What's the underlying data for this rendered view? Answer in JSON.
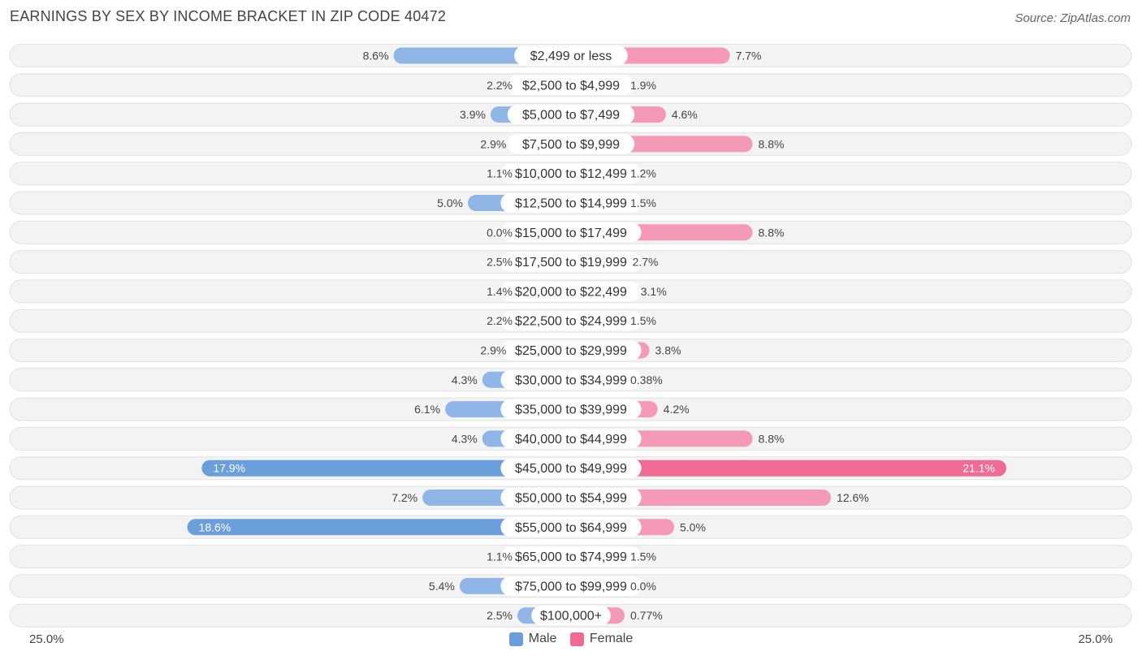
{
  "header": {
    "title": "EARNINGS BY SEX BY INCOME BRACKET IN ZIP CODE 40472",
    "source": "Source: ZipAtlas.com"
  },
  "axis": {
    "left_label": "25.0%",
    "right_label": "25.0%"
  },
  "legend": {
    "male_label": "Male",
    "female_label": "Female"
  },
  "colors": {
    "male": "#8fb6e6",
    "male_strong": "#6a9fdc",
    "female": "#f49ab6",
    "female_strong": "#f06b93",
    "row_bg": "#f2f2f2"
  },
  "chart_data": {
    "type": "bar",
    "orientation": "horizontal-diverging",
    "title": "EARNINGS BY SEX BY INCOME BRACKET IN ZIP CODE 40472",
    "xlim": [
      -25,
      25
    ],
    "categories": [
      "$2,499 or less",
      "$2,500 to $4,999",
      "$5,000 to $7,499",
      "$7,500 to $9,999",
      "$10,000 to $12,499",
      "$12,500 to $14,999",
      "$15,000 to $17,499",
      "$17,500 to $19,999",
      "$20,000 to $22,499",
      "$22,500 to $24,999",
      "$25,000 to $29,999",
      "$30,000 to $34,999",
      "$35,000 to $39,999",
      "$40,000 to $44,999",
      "$45,000 to $49,999",
      "$50,000 to $54,999",
      "$55,000 to $64,999",
      "$65,000 to $74,999",
      "$75,000 to $99,999",
      "$100,000+"
    ],
    "series": [
      {
        "name": "Male",
        "values": [
          8.6,
          2.2,
          3.9,
          2.9,
          1.1,
          5.0,
          0.0,
          2.5,
          1.4,
          2.2,
          2.9,
          4.3,
          6.1,
          4.3,
          17.9,
          7.2,
          18.6,
          1.1,
          5.4,
          2.5
        ],
        "labels": [
          "8.6%",
          "2.2%",
          "3.9%",
          "2.9%",
          "1.1%",
          "5.0%",
          "0.0%",
          "2.5%",
          "1.4%",
          "2.2%",
          "2.9%",
          "4.3%",
          "6.1%",
          "4.3%",
          "17.9%",
          "7.2%",
          "18.6%",
          "1.1%",
          "5.4%",
          "2.5%"
        ]
      },
      {
        "name": "Female",
        "values": [
          7.7,
          1.9,
          4.6,
          8.8,
          1.2,
          1.5,
          8.8,
          2.7,
          3.1,
          1.5,
          3.8,
          0.38,
          4.2,
          8.8,
          21.1,
          12.6,
          5.0,
          1.5,
          0.0,
          0.77
        ],
        "labels": [
          "7.7%",
          "1.9%",
          "4.6%",
          "8.8%",
          "1.2%",
          "1.5%",
          "8.8%",
          "2.7%",
          "3.1%",
          "1.5%",
          "3.8%",
          "0.38%",
          "4.2%",
          "8.8%",
          "21.1%",
          "12.6%",
          "5.0%",
          "1.5%",
          "0.0%",
          "0.77%"
        ]
      }
    ]
  }
}
